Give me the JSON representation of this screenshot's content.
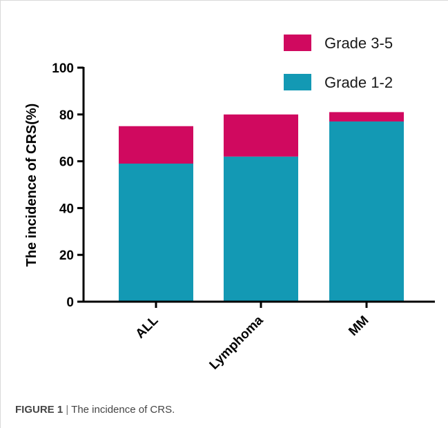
{
  "chart_data": {
    "type": "bar",
    "stacked": true,
    "categories": [
      "ALL",
      "Lymphoma",
      "MM"
    ],
    "series": [
      {
        "name": "Grade 1-2",
        "values": [
          59,
          62,
          77
        ],
        "color": "#1399b4"
      },
      {
        "name": "Grade 3-5",
        "values": [
          16,
          18,
          4
        ],
        "color": "#d0095f"
      }
    ],
    "ylabel": "The incidence of CRS(%)",
    "xlabel": "",
    "ylim": [
      0,
      100
    ],
    "yticks": [
      0,
      20,
      40,
      60,
      80,
      100
    ],
    "grid": false,
    "legend_position": "top-right",
    "legend_order": [
      "Grade 3-5",
      "Grade 1-2"
    ],
    "category_label_rotation": -45
  },
  "caption": {
    "label": "FIGURE 1",
    "separator": "|",
    "text": "The incidence of CRS."
  }
}
